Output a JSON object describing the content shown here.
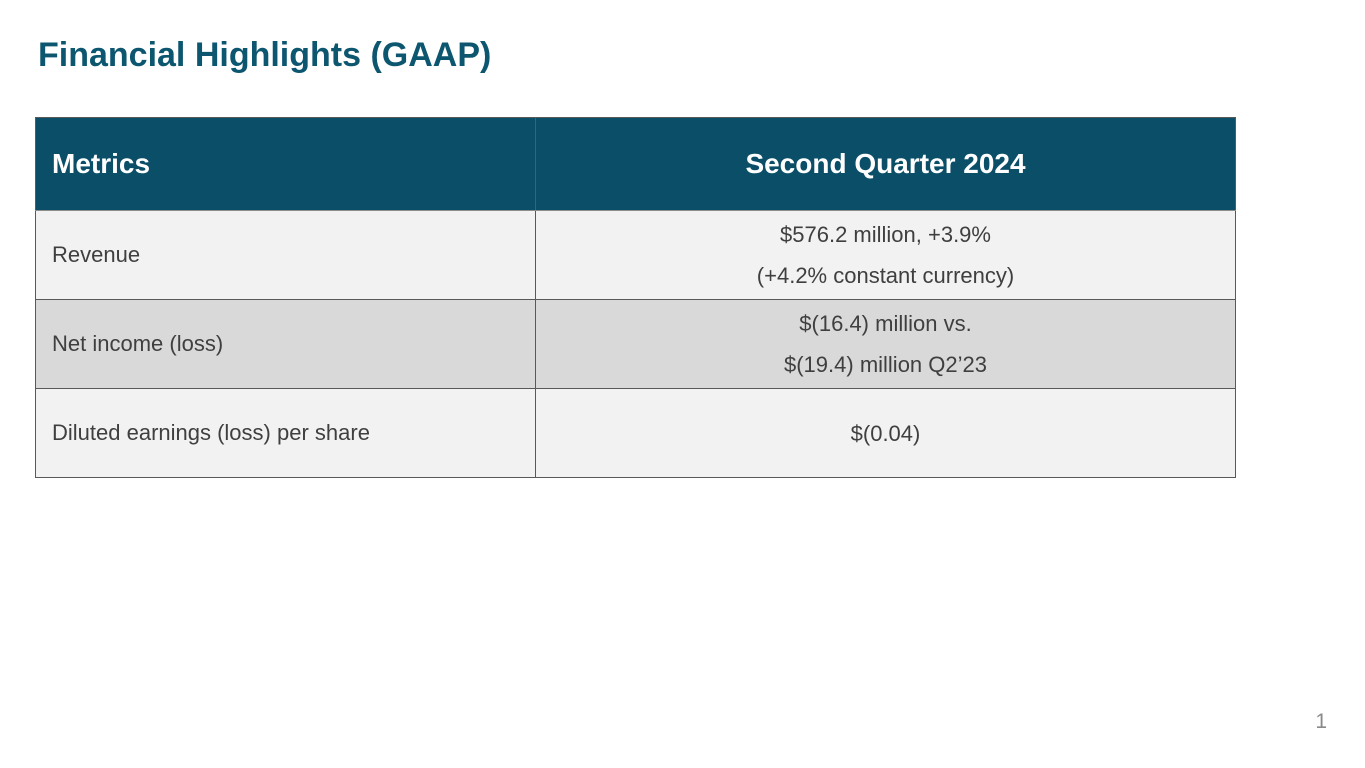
{
  "slide": {
    "title": "Financial Highlights (GAAP)",
    "page_number": "1"
  },
  "colors": {
    "title_text": "#0d5670",
    "header_bg": "#0b4e68",
    "header_text": "#ffffff",
    "row_light_bg": "#f2f2f2",
    "row_dark_bg": "#d9d9d9",
    "body_text": "#3f3f3f"
  },
  "table": {
    "columns": [
      "Metrics",
      "Second Quarter 2024"
    ],
    "rows": [
      {
        "metric": "Revenue",
        "lines": [
          "$576.2 million, +3.9%",
          "(+4.2% constant currency)"
        ]
      },
      {
        "metric": "Net income (loss)",
        "lines": [
          "$(16.4) million vs.",
          "$(19.4) million Q2’23"
        ]
      },
      {
        "metric": "Diluted earnings (loss) per share",
        "lines": [
          "$(0.04)"
        ]
      }
    ]
  }
}
